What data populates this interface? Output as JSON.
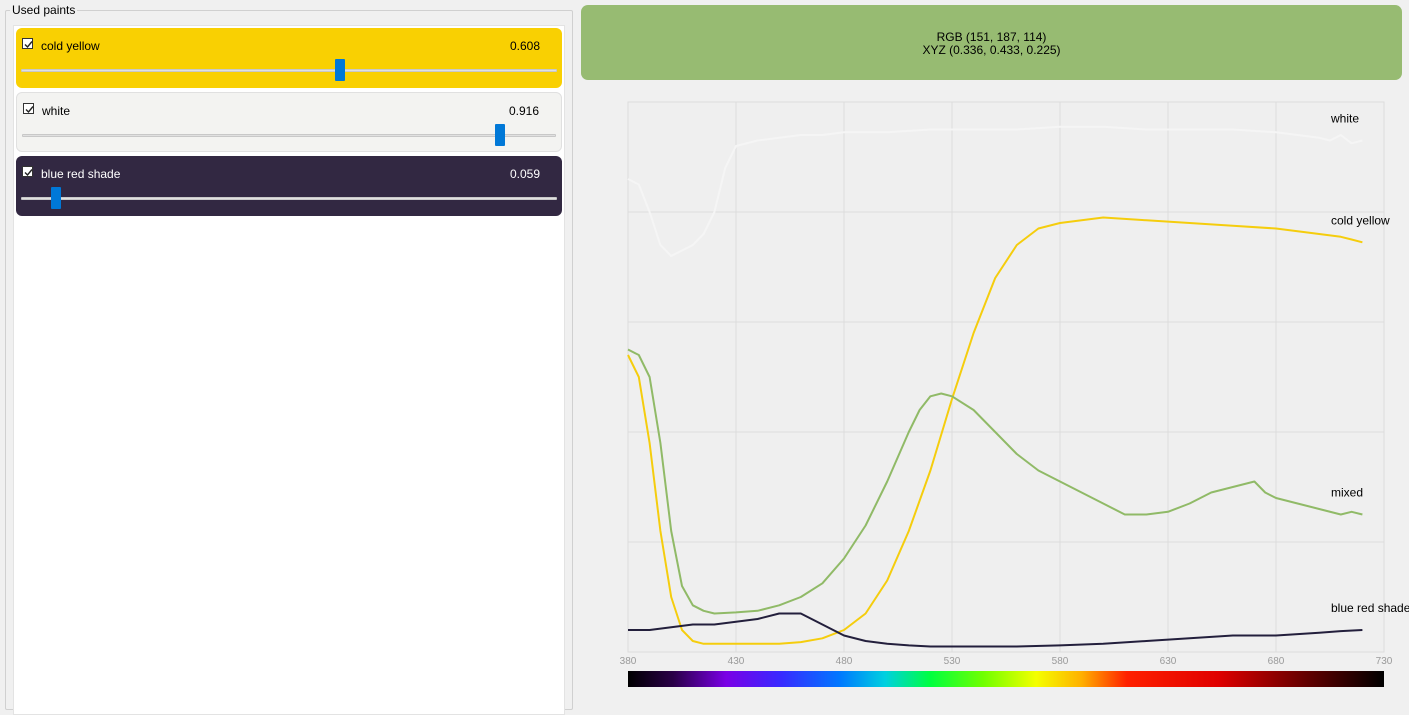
{
  "panel": {
    "title": "Used paints"
  },
  "paints": [
    {
      "name": "cold yellow",
      "value": "0.608",
      "fraction": 0.608,
      "checked": true,
      "color": "#f9d002",
      "text_color": "#000000"
    },
    {
      "name": "white",
      "value": "0.916",
      "fraction": 0.916,
      "checked": true,
      "color": "#f3f3f1",
      "text_color": "#000000"
    },
    {
      "name": "blue red shade",
      "value": "0.059",
      "fraction": 0.059,
      "checked": true,
      "color": "#322842",
      "text_color": "#ffffff"
    }
  ],
  "mix": {
    "rgb_text": "RGB (151, 187, 114)",
    "xyz_text": "XYZ (0.336, 0.433, 0.225)",
    "color": "#97bb72"
  },
  "chart_data": {
    "type": "line",
    "xlim": [
      380,
      730
    ],
    "ylim": [
      0,
      1
    ],
    "x_ticks": [
      "380",
      "430",
      "480",
      "530",
      "580",
      "630",
      "680",
      "730"
    ],
    "grid": true,
    "spectrum_bar": true,
    "series": [
      {
        "name": "white",
        "color": "#f5f5f5",
        "x": [
          380,
          385,
          390,
          395,
          400,
          405,
          410,
          415,
          420,
          425,
          430,
          440,
          450,
          460,
          470,
          480,
          490,
          500,
          520,
          540,
          560,
          580,
          600,
          620,
          640,
          660,
          680,
          690,
          700,
          705,
          710,
          715,
          720
        ],
        "y": [
          0.86,
          0.85,
          0.8,
          0.74,
          0.72,
          0.73,
          0.74,
          0.76,
          0.8,
          0.88,
          0.92,
          0.93,
          0.935,
          0.94,
          0.94,
          0.945,
          0.945,
          0.945,
          0.95,
          0.95,
          0.95,
          0.955,
          0.955,
          0.95,
          0.95,
          0.95,
          0.945,
          0.94,
          0.935,
          0.93,
          0.94,
          0.925,
          0.93
        ]
      },
      {
        "name": "cold yellow",
        "color": "#f5cd0d",
        "x": [
          380,
          385,
          390,
          395,
          400,
          405,
          410,
          415,
          420,
          425,
          430,
          440,
          450,
          460,
          470,
          480,
          490,
          500,
          510,
          520,
          530,
          540,
          550,
          560,
          570,
          580,
          600,
          620,
          640,
          660,
          680,
          690,
          700,
          710,
          715,
          720
        ],
        "y": [
          0.54,
          0.5,
          0.38,
          0.22,
          0.1,
          0.04,
          0.02,
          0.015,
          0.015,
          0.015,
          0.015,
          0.015,
          0.015,
          0.018,
          0.025,
          0.04,
          0.07,
          0.13,
          0.22,
          0.33,
          0.46,
          0.58,
          0.68,
          0.74,
          0.77,
          0.78,
          0.79,
          0.785,
          0.78,
          0.775,
          0.77,
          0.765,
          0.76,
          0.755,
          0.75,
          0.745
        ]
      },
      {
        "name": "mixed",
        "color": "#90ba67",
        "x": [
          380,
          385,
          390,
          395,
          400,
          405,
          410,
          415,
          420,
          430,
          440,
          450,
          460,
          470,
          480,
          490,
          500,
          510,
          515,
          520,
          525,
          530,
          540,
          550,
          560,
          570,
          580,
          590,
          600,
          610,
          620,
          630,
          640,
          650,
          660,
          670,
          675,
          680,
          690,
          700,
          710,
          715,
          720
        ],
        "y": [
          0.55,
          0.54,
          0.5,
          0.38,
          0.22,
          0.12,
          0.085,
          0.075,
          0.07,
          0.072,
          0.075,
          0.085,
          0.1,
          0.125,
          0.17,
          0.23,
          0.31,
          0.4,
          0.44,
          0.465,
          0.47,
          0.465,
          0.44,
          0.4,
          0.36,
          0.33,
          0.31,
          0.29,
          0.27,
          0.25,
          0.25,
          0.255,
          0.27,
          0.29,
          0.3,
          0.31,
          0.29,
          0.28,
          0.27,
          0.26,
          0.25,
          0.255,
          0.25
        ]
      },
      {
        "name": "blue red shade",
        "color": "#231f3c",
        "x": [
          380,
          390,
          400,
          410,
          420,
          430,
          440,
          450,
          460,
          470,
          480,
          490,
          500,
          510,
          520,
          530,
          540,
          560,
          580,
          600,
          620,
          640,
          660,
          680,
          700,
          710,
          720
        ],
        "y": [
          0.04,
          0.04,
          0.045,
          0.05,
          0.05,
          0.055,
          0.06,
          0.07,
          0.07,
          0.05,
          0.03,
          0.02,
          0.015,
          0.012,
          0.01,
          0.01,
          0.01,
          0.01,
          0.012,
          0.015,
          0.02,
          0.025,
          0.03,
          0.03,
          0.035,
          0.038,
          0.04
        ]
      }
    ]
  }
}
